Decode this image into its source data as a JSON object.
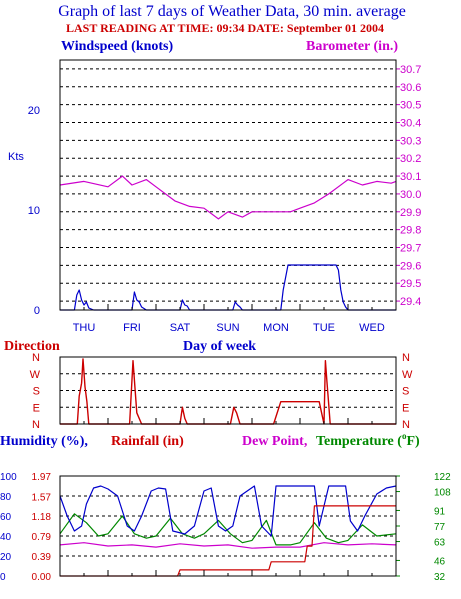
{
  "header": {
    "title": "Graph of last 7 days of Weather Data, 30 min. average",
    "subtitle": "LAST READING AT TIME: 09:34  DATE: September 01 2004"
  },
  "colors": {
    "title": "#0000cc",
    "subtitle": "#cc0000",
    "wind": "#0000cc",
    "barometer": "#cc00cc",
    "direction": "#cc0000",
    "humidity": "#0000cc",
    "rainfall": "#cc0000",
    "dewpoint": "#cc00cc",
    "temperature": "#008800",
    "grid": "#000000"
  },
  "days": [
    "THU",
    "FRI",
    "SAT",
    "SUN",
    "MON",
    "TUE",
    "WED"
  ],
  "chart_data": [
    {
      "type": "line",
      "title": "",
      "xlabel": "Day of week",
      "categories": [
        "THU",
        "FRI",
        "SAT",
        "SUN",
        "MON",
        "TUE",
        "WED"
      ],
      "left_axis": {
        "label": "Windspeed (knots)",
        "unit": "Kts",
        "ylim": [
          0,
          25
        ],
        "ticks": [
          0,
          10,
          20
        ]
      },
      "right_axis": {
        "label": "Barometer (in.)",
        "ylim": [
          29.35,
          30.75
        ],
        "ticks": [
          29.4,
          29.5,
          29.6,
          29.7,
          29.8,
          29.9,
          30.0,
          30.1,
          30.2,
          30.3,
          30.4,
          30.5,
          30.6,
          30.7
        ]
      },
      "grid": true,
      "series": [
        {
          "name": "Windspeed (knots)",
          "axis": "left",
          "x": [
            0,
            0.3,
            0.35,
            0.4,
            0.45,
            0.5,
            0.55,
            0.6,
            0.7,
            1.0,
            1.5,
            1.55,
            1.6,
            1.65,
            1.7,
            1.8,
            2.0,
            2.5,
            2.55,
            2.6,
            2.65,
            2.7,
            2.8,
            3.0,
            3.5,
            3.6,
            3.65,
            3.7,
            3.75,
            3.8,
            4.0,
            4.6,
            4.65,
            4.75,
            5.0,
            5.5,
            5.75,
            5.8,
            5.85,
            5.9,
            5.95,
            6.0,
            6.5,
            7.0
          ],
          "y": [
            0,
            0,
            1.5,
            2.0,
            1.0,
            0.5,
            0.8,
            0.2,
            0,
            0,
            0,
            1.8,
            1.0,
            0.8,
            0.3,
            0,
            0,
            0,
            1.0,
            0.5,
            0.4,
            0,
            0,
            0,
            0,
            0,
            0.8,
            0.5,
            0.3,
            0,
            0,
            0,
            2.0,
            4.5,
            4.5,
            4.5,
            4.5,
            4.0,
            2.0,
            0.8,
            0.3,
            0,
            0,
            0
          ]
        },
        {
          "name": "Barometer (in.)",
          "axis": "right",
          "x": [
            0,
            0.5,
            1.0,
            1.3,
            1.5,
            1.8,
            2.0,
            2.4,
            2.7,
            3.0,
            3.3,
            3.5,
            3.8,
            4.0,
            4.3,
            4.5,
            4.8,
            5.0,
            5.3,
            5.6,
            5.9,
            6.0,
            6.3,
            6.6,
            6.9,
            7.0
          ],
          "y": [
            30.05,
            30.07,
            30.04,
            30.1,
            30.05,
            30.08,
            30.04,
            29.96,
            29.93,
            29.92,
            29.86,
            29.9,
            29.87,
            29.9,
            29.9,
            29.9,
            29.9,
            29.92,
            29.95,
            30.0,
            30.06,
            30.08,
            30.05,
            30.07,
            30.06,
            30.07
          ]
        }
      ]
    },
    {
      "type": "line",
      "title": "Direction",
      "categories": [
        "N",
        "E",
        "S",
        "W",
        "N"
      ],
      "ylim": [
        0,
        360
      ],
      "grid": true,
      "series": [
        {
          "name": "Direction",
          "x": [
            0,
            0.36,
            0.4,
            0.45,
            0.48,
            0.52,
            0.56,
            0.6,
            1.45,
            1.52,
            1.56,
            1.6,
            1.7,
            2.5,
            2.55,
            2.6,
            2.65,
            3.55,
            3.62,
            3.68,
            3.75,
            4.45,
            4.6,
            5.4,
            5.5,
            5.53,
            5.56,
            5.6,
            5.63,
            7.0
          ],
          "y": [
            0,
            0,
            150,
            220,
            350,
            200,
            120,
            0,
            0,
            340,
            200,
            60,
            0,
            0,
            90,
            30,
            0,
            0,
            90,
            60,
            0,
            0,
            120,
            120,
            0,
            340,
            230,
            100,
            0,
            0
          ]
        }
      ]
    },
    {
      "type": "line",
      "title": "",
      "axes": [
        {
          "label": "Humidity (%)",
          "ylim": [
            0,
            100
          ],
          "ticks": [
            0,
            20,
            40,
            60,
            80,
            100
          ]
        },
        {
          "label": "Rainfall (in)",
          "ylim": [
            0,
            1.97
          ],
          "ticks": [
            0.0,
            0.39,
            0.79,
            1.18,
            1.57,
            1.97
          ]
        },
        {
          "label": "Dew Point, Temperature (°F)",
          "ylim": [
            32,
            122
          ],
          "ticks": [
            32,
            46,
            63,
            77,
            91,
            108,
            122
          ]
        }
      ],
      "grid": true,
      "series": [
        {
          "name": "Humidity (%)",
          "x": [
            0,
            0.15,
            0.3,
            0.45,
            0.55,
            0.7,
            0.85,
            1.0,
            1.2,
            1.4,
            1.55,
            1.7,
            1.9,
            2.05,
            2.2,
            2.35,
            2.6,
            2.8,
            3.0,
            3.15,
            3.3,
            3.45,
            3.6,
            3.75,
            3.9,
            4.05,
            4.2,
            4.4,
            4.5,
            4.6,
            4.7,
            5.0,
            5.3,
            5.4,
            5.6,
            5.8,
            5.95,
            6.05,
            6.2,
            6.35,
            6.6,
            6.8,
            7.0
          ],
          "y": [
            80,
            60,
            45,
            50,
            72,
            88,
            90,
            87,
            80,
            50,
            45,
            60,
            85,
            88,
            87,
            45,
            42,
            50,
            85,
            88,
            50,
            45,
            50,
            80,
            85,
            90,
            50,
            40,
            90,
            90,
            90,
            90,
            90,
            50,
            90,
            90,
            90,
            55,
            45,
            60,
            82,
            88,
            90
          ]
        },
        {
          "name": "Temperature (°F)",
          "x": [
            0,
            0.3,
            0.55,
            0.8,
            1.0,
            1.3,
            1.55,
            1.8,
            2.0,
            2.3,
            2.55,
            2.8,
            3.0,
            3.3,
            3.55,
            3.8,
            4.0,
            4.3,
            4.5,
            4.8,
            5.0,
            5.3,
            5.55,
            5.8,
            6.0,
            6.3,
            6.6,
            7.0
          ],
          "y": [
            70,
            88,
            80,
            68,
            70,
            86,
            70,
            66,
            68,
            84,
            70,
            66,
            70,
            82,
            70,
            62,
            64,
            82,
            60,
            60,
            62,
            80,
            66,
            62,
            64,
            78,
            68,
            70
          ]
        },
        {
          "name": "Dew Point",
          "x": [
            0,
            0.5,
            1.0,
            1.5,
            2.0,
            2.5,
            3.0,
            3.5,
            4.0,
            4.5,
            5.0,
            5.5,
            6.0,
            6.5,
            7.0
          ],
          "y": [
            60,
            62,
            59,
            60,
            58,
            61,
            59,
            60,
            57,
            58,
            58,
            62,
            60,
            61,
            60
          ]
        },
        {
          "name": "Rainfall (in)",
          "x": [
            0,
            2.45,
            2.5,
            4.35,
            4.4,
            5.1,
            5.15,
            5.25,
            5.3,
            7.0
          ],
          "y": [
            0,
            0,
            0.12,
            0.12,
            0.28,
            0.28,
            0.59,
            0.59,
            1.38,
            1.38
          ]
        }
      ]
    }
  ],
  "labels": {
    "windspeed": "Windspeed (knots)",
    "barometer": "Barometer (in.)",
    "kts": "Kts",
    "direction": "Direction",
    "dayofweek": "Day of week",
    "humidity": "Humidity (%),",
    "rainfall": "Rainfall (in)",
    "dewpoint": "Dew Point,",
    "temperature": "Temperature (",
    "temp_unit_suffix": "F)",
    "degree": "o"
  }
}
